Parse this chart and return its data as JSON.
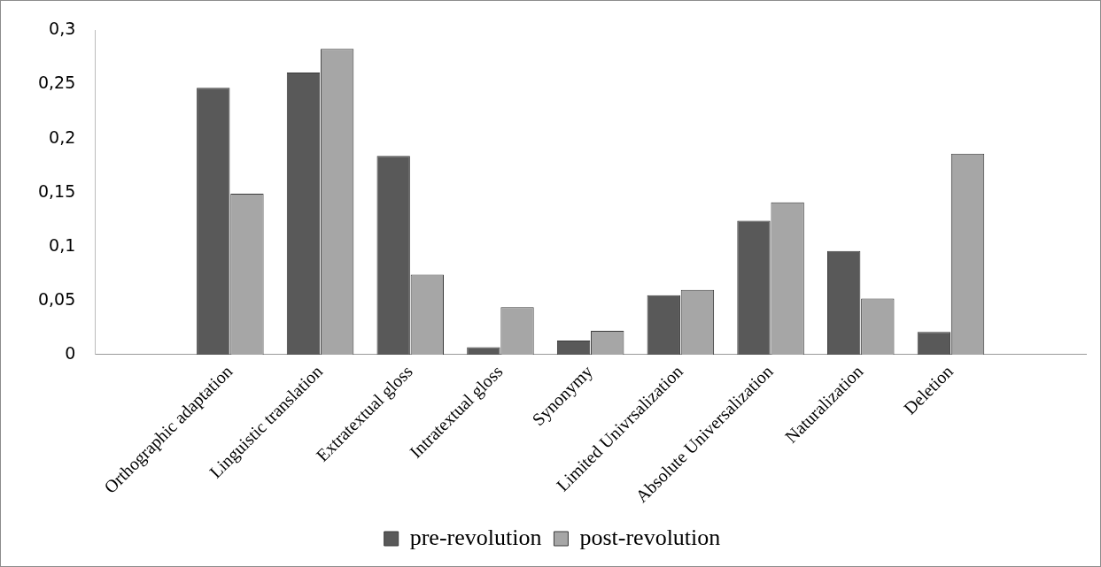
{
  "chart_data": {
    "type": "bar",
    "categories": [
      null,
      "Orthographic adaptation",
      "Linguistic translation",
      "Extratextual gloss",
      "Intratextual gloss",
      "Synonymy",
      "Limited Univrsalization",
      "Absolute Universalization",
      "Naturalization",
      "Deletion",
      null
    ],
    "series": [
      {
        "name": "pre-revolution",
        "color": "#595959",
        "values": [
          null,
          0.247,
          0.261,
          0.184,
          0.007,
          0.013,
          0.055,
          0.124,
          0.096,
          0.021,
          null
        ]
      },
      {
        "name": "post-revolution",
        "color": "#a6a6a6",
        "values": [
          null,
          0.149,
          0.283,
          0.074,
          0.044,
          0.022,
          0.06,
          0.141,
          0.052,
          0.186,
          null
        ]
      }
    ],
    "ylim": [
      0,
      0.3
    ],
    "yticks": [
      0,
      {
        "value": 0.05,
        "label": "0,05"
      },
      {
        "value": 0.1,
        "label": "0,1"
      },
      {
        "value": 0.15,
        "label": "0,15"
      },
      {
        "value": 0.2,
        "label": "0,2"
      },
      {
        "value": 0.25,
        "label": "0,25"
      },
      {
        "value": 0.3,
        "label": "0,3"
      }
    ],
    "grid": false,
    "legend": "bottom"
  }
}
